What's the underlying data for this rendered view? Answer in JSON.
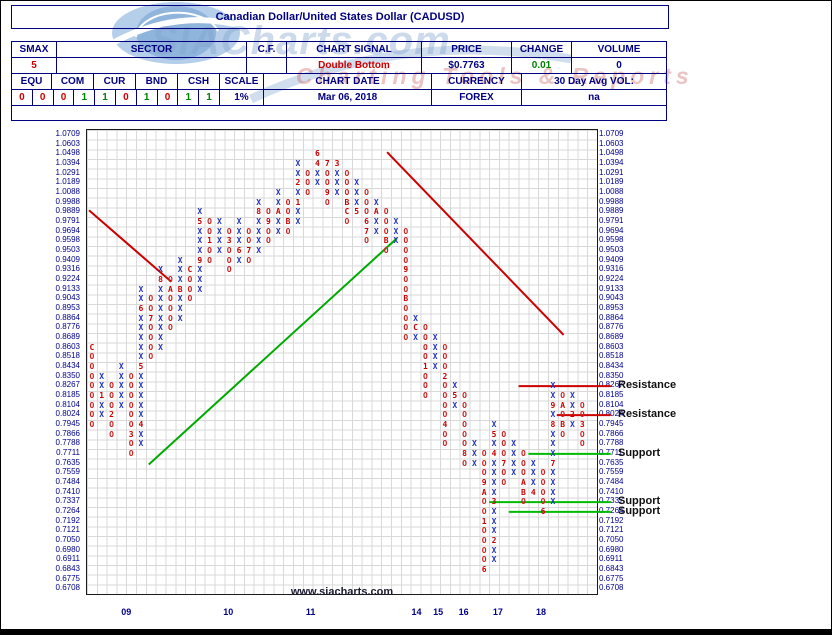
{
  "title": "Canadian Dollar/United States Dollar (CADUSD)",
  "watermark": {
    "logo_text": "SIACharts.com",
    "tagline": "Charting Tools & Reports",
    "site": "www.siacharts.com"
  },
  "summary": {
    "headers": [
      "SMAX",
      "SECTOR",
      "C.F.",
      "CHART SIGNAL",
      "PRICE",
      "CHANGE",
      "VOLUME"
    ],
    "smax": "5",
    "sector": "",
    "cf": "",
    "chart_signal": "Double Bottom",
    "price": "$0.7763",
    "change": "0.01",
    "volume": "0"
  },
  "allocation": {
    "headers": [
      "EQU",
      "COM",
      "CUR",
      "BND",
      "CSH",
      "SCALE"
    ],
    "pairs": [
      [
        "0",
        "0"
      ],
      [
        "0",
        "1"
      ],
      [
        "1",
        "0"
      ],
      [
        "1",
        "0"
      ],
      [
        "1",
        "1"
      ]
    ],
    "scale": "1%",
    "chart_date_label": "CHART DATE",
    "chart_date": "Mar 06, 2018",
    "currency_label": "CURRENCY",
    "currency": "FOREX",
    "vol_label": "30 Day Avg VOL:",
    "vol": "na"
  },
  "palette": {
    "navy": "#000080",
    "signal_red": "#cc0000",
    "change_green": "#008000"
  },
  "chart_data": {
    "type": "point-and-figure",
    "title": "Canadian Dollar/United States Dollar (CADUSD)",
    "box_scale": "1%",
    "grid_rows": 48,
    "grid_cols": 52,
    "price_levels": [
      "1.0709",
      "1.0603",
      "1.0498",
      "1.0394",
      "1.0291",
      "1.0189",
      "1.0088",
      "0.9988",
      "0.9889",
      "0.9791",
      "0.9694",
      "0.9598",
      "0.9503",
      "0.9409",
      "0.9316",
      "0.9224",
      "0.9133",
      "0.9043",
      "0.8953",
      "0.8864",
      "0.8776",
      "0.8689",
      "0.8603",
      "0.8518",
      "0.8434",
      "0.8350",
      "0.8267",
      "0.8185",
      "0.8104",
      "0.8024",
      "0.7945",
      "0.7866",
      "0.7788",
      "0.7711",
      "0.7635",
      "0.7559",
      "0.7484",
      "0.7410",
      "0.7337",
      "0.7264",
      "0.7192",
      "0.7121",
      "0.7050",
      "0.6980",
      "0.6911",
      "0.6843",
      "0.6775",
      "0.6708"
    ],
    "x_labels": [
      {
        "label": "09",
        "col": 3.6
      },
      {
        "label": "10",
        "col": 14.0
      },
      {
        "label": "11",
        "col": 22.4
      },
      {
        "label": "14",
        "col": 33.2
      },
      {
        "label": "15",
        "col": 35.4
      },
      {
        "label": "16",
        "col": 38.0
      },
      {
        "label": "17",
        "col": 41.5
      },
      {
        "label": "18",
        "col": 45.9
      }
    ],
    "columns": [
      {
        "t": "O",
        "hi": 22,
        "lo": 30,
        "m": {
          "22": "C"
        }
      },
      {
        "t": "X",
        "hi": 25,
        "lo": 29,
        "m": {
          "27": "1"
        }
      },
      {
        "t": "O",
        "hi": 26,
        "lo": 31,
        "m": {
          "29": "2"
        }
      },
      {
        "t": "X",
        "hi": 24,
        "lo": 28,
        "m": {}
      },
      {
        "t": "O",
        "hi": 25,
        "lo": 33,
        "m": {
          "31": "3"
        }
      },
      {
        "t": "X",
        "hi": 16,
        "lo": 32,
        "m": {
          "30": "4",
          "24": "5",
          "18": "6"
        }
      },
      {
        "t": "O",
        "hi": 17,
        "lo": 23,
        "m": {
          "19": "7"
        }
      },
      {
        "t": "X",
        "hi": 14,
        "lo": 22,
        "m": {
          "15": "8"
        }
      },
      {
        "t": "O",
        "hi": 15,
        "lo": 20,
        "m": {
          "16": "A"
        }
      },
      {
        "t": "X",
        "hi": 13,
        "lo": 19,
        "m": {
          "16": "B"
        }
      },
      {
        "t": "O",
        "hi": 14,
        "lo": 17,
        "m": {
          "14": "C"
        }
      },
      {
        "t": "X",
        "hi": 8,
        "lo": 16,
        "m": {
          "13": "9",
          "9": "5"
        }
      },
      {
        "t": "O",
        "hi": 9,
        "lo": 13,
        "m": {
          "11": "1"
        }
      },
      {
        "t": "X",
        "hi": 9,
        "lo": 12,
        "m": {}
      },
      {
        "t": "O",
        "hi": 10,
        "lo": 14,
        "m": {
          "11": "3"
        }
      },
      {
        "t": "X",
        "hi": 9,
        "lo": 13,
        "m": {
          "12": "6"
        }
      },
      {
        "t": "O",
        "hi": 10,
        "lo": 13,
        "m": {
          "12": "7"
        }
      },
      {
        "t": "X",
        "hi": 7,
        "lo": 12,
        "m": {
          "8": "8"
        }
      },
      {
        "t": "O",
        "hi": 8,
        "lo": 11,
        "m": {
          "9": "9"
        }
      },
      {
        "t": "X",
        "hi": 6,
        "lo": 10,
        "m": {
          "8": "A"
        }
      },
      {
        "t": "O",
        "hi": 7,
        "lo": 10,
        "m": {
          "9": "B"
        }
      },
      {
        "t": "X",
        "hi": 3,
        "lo": 9,
        "m": {
          "7": "1",
          "5": "2"
        }
      },
      {
        "t": "O",
        "hi": 4,
        "lo": 6,
        "m": {}
      },
      {
        "t": "X",
        "hi": 2,
        "lo": 5,
        "m": {
          "2": "6",
          "3": "4"
        }
      },
      {
        "t": "O",
        "hi": 3,
        "lo": 7,
        "m": {
          "3": "7",
          "6": "9"
        }
      },
      {
        "t": "X",
        "hi": 3,
        "lo": 6,
        "m": {
          "3": "3"
        }
      },
      {
        "t": "O",
        "hi": 4,
        "lo": 9,
        "m": {
          "7": "B",
          "8": "C"
        }
      },
      {
        "t": "X",
        "hi": 5,
        "lo": 8,
        "m": {
          "8": "5"
        }
      },
      {
        "t": "O",
        "hi": 6,
        "lo": 11,
        "m": {
          "9": "6",
          "10": "7"
        }
      },
      {
        "t": "X",
        "hi": 7,
        "lo": 10,
        "m": {
          "8": "A"
        }
      },
      {
        "t": "O",
        "hi": 8,
        "lo": 12,
        "m": {
          "11": "B"
        }
      },
      {
        "t": "X",
        "hi": 9,
        "lo": 11,
        "m": {}
      },
      {
        "t": "O",
        "hi": 10,
        "lo": 21,
        "m": {
          "14": "9",
          "17": "B"
        }
      },
      {
        "t": "X",
        "hi": 19,
        "lo": 21,
        "m": {
          "20": "C"
        }
      },
      {
        "t": "O",
        "hi": 20,
        "lo": 27,
        "m": {
          "24": "1"
        }
      },
      {
        "t": "X",
        "hi": 21,
        "lo": 24,
        "m": {}
      },
      {
        "t": "O",
        "hi": 22,
        "lo": 32,
        "m": {
          "25": "2",
          "30": "4"
        }
      },
      {
        "t": "X",
        "hi": 26,
        "lo": 28,
        "m": {
          "27": "5"
        }
      },
      {
        "t": "O",
        "hi": 27,
        "lo": 34,
        "m": {
          "33": "8"
        }
      },
      {
        "t": "X",
        "hi": 32,
        "lo": 34,
        "m": {}
      },
      {
        "t": "O",
        "hi": 33,
        "lo": 45,
        "m": {
          "36": "9",
          "37": "A",
          "40": "1",
          "45": "6"
        }
      },
      {
        "t": "X",
        "hi": 30,
        "lo": 44,
        "m": {
          "42": "2",
          "38": "3",
          "33": "4",
          "31": "5"
        }
      },
      {
        "t": "O",
        "hi": 31,
        "lo": 36,
        "m": {
          "34": "7"
        }
      },
      {
        "t": "X",
        "hi": 32,
        "lo": 35,
        "m": {}
      },
      {
        "t": "O",
        "hi": 33,
        "lo": 38,
        "m": {
          "36": "A",
          "37": "B"
        }
      },
      {
        "t": "X",
        "hi": 34,
        "lo": 37,
        "m": {
          "37": "4"
        }
      },
      {
        "t": "O",
        "hi": 35,
        "lo": 39,
        "m": {
          "39": "6"
        }
      },
      {
        "t": "X",
        "hi": 26,
        "lo": 38,
        "m": {
          "34": "7",
          "30": "8",
          "28": "9"
        }
      },
      {
        "t": "O",
        "hi": 27,
        "lo": 31,
        "m": {
          "28": "A",
          "30": "B"
        }
      },
      {
        "t": "X",
        "hi": 27,
        "lo": 30,
        "m": {
          "29": "2"
        }
      },
      {
        "t": "O",
        "hi": 28,
        "lo": 32,
        "m": {
          "30": "3"
        }
      }
    ],
    "trendlines": [
      {
        "color": "#cc0000",
        "c1": 0.2,
        "r1": 8.3,
        "c2": 8.6,
        "r2": 15.7
      },
      {
        "color": "#00aa00",
        "c1": 6.3,
        "r1": 34.6,
        "c2": 31.6,
        "r2": 11.2
      },
      {
        "color": "#cc0000",
        "c1": 30.6,
        "r1": 2.3,
        "c2": 48.6,
        "r2": 21.2
      }
    ],
    "levels": [
      {
        "label": "Resistance",
        "color": "#cc0000",
        "price": "0.8267",
        "row": 26,
        "c1": 44.0,
        "c2": 53.4
      },
      {
        "label": "Resistance",
        "color": "#cc0000",
        "price": "0.8024",
        "row": 29,
        "c1": 47.9,
        "c2": 53.4
      },
      {
        "label": "Support",
        "color": "#00bb00",
        "price": "0.7711",
        "row": 33,
        "c1": 45.0,
        "c2": 53.4
      },
      {
        "label": "Support",
        "color": "#00bb00",
        "price": "0.7337",
        "row": 38,
        "c1": 41.0,
        "c2": 53.4
      },
      {
        "label": "Support",
        "color": "#00bb00",
        "price": "0.7264",
        "row": 39,
        "c1": 43.0,
        "c2": 53.4
      }
    ],
    "colors": {
      "x": "#2233bb",
      "o": "#cc2222",
      "month": "#cc0000"
    }
  }
}
